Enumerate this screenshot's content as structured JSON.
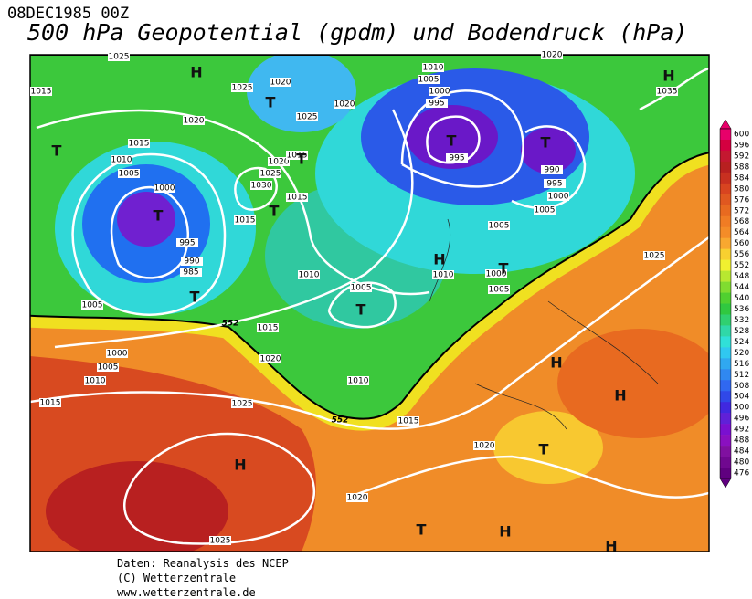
{
  "header": {
    "date": "08DEC1985 00Z",
    "title": "500 hPa Geopotential (gpdm) und Bodendruck (hPa)"
  },
  "map": {
    "isobar_labels": [
      "1025",
      "1015",
      "1025",
      "1020",
      "1020",
      "1025",
      "1020",
      "1015",
      "1010",
      "1005",
      "1000",
      "1020",
      "1015",
      "1025",
      "1030",
      "1015",
      "1015",
      "995",
      "990",
      "985",
      "1010",
      "1005",
      "1005",
      "1015",
      "1000",
      "1005",
      "1010",
      "1020",
      "1010",
      "1015",
      "1025",
      "1015",
      "1020",
      "1020",
      "1025",
      "1010",
      "1005",
      "1000",
      "995",
      "995",
      "990",
      "995",
      "1000",
      "1005",
      "1005",
      "1010",
      "1000",
      "1005",
      "1025",
      "1035",
      "1020"
    ],
    "contour_labels": [
      "552",
      "552"
    ],
    "pressure_centers": [
      "H",
      "T",
      "T",
      "T",
      "T",
      "T",
      "T",
      "T",
      "T",
      "T",
      "H",
      "T",
      "H",
      "H",
      "H",
      "H",
      "T",
      "T",
      "H",
      "H"
    ]
  },
  "colorbar": {
    "ticks": [
      600,
      596,
      592,
      588,
      584,
      580,
      576,
      572,
      568,
      564,
      560,
      556,
      552,
      548,
      544,
      540,
      536,
      532,
      528,
      524,
      520,
      516,
      512,
      508,
      504,
      500,
      496,
      492,
      488,
      484,
      480,
      476
    ],
    "colors": [
      "#e8006a",
      "#d40040",
      "#c41830",
      "#b82020",
      "#c83020",
      "#d84420",
      "#e05820",
      "#e86a20",
      "#f07c24",
      "#f48c28",
      "#f8a830",
      "#f8d030",
      "#f0f030",
      "#b8e830",
      "#80dc30",
      "#50d030",
      "#30c840",
      "#30d070",
      "#30d8a8",
      "#30e0d8",
      "#30c8f0",
      "#30a8f0",
      "#3088f0",
      "#3068f0",
      "#3048e8",
      "#4028e0",
      "#6020d8",
      "#7a10d0",
      "#8a10c0",
      "#8010a0",
      "#700890",
      "#600080"
    ]
  },
  "footer": {
    "lines": [
      "Daten: Reanalysis des NCEP",
      "(C) Wetterzentrale",
      "www.wetterzentrale.de"
    ]
  }
}
